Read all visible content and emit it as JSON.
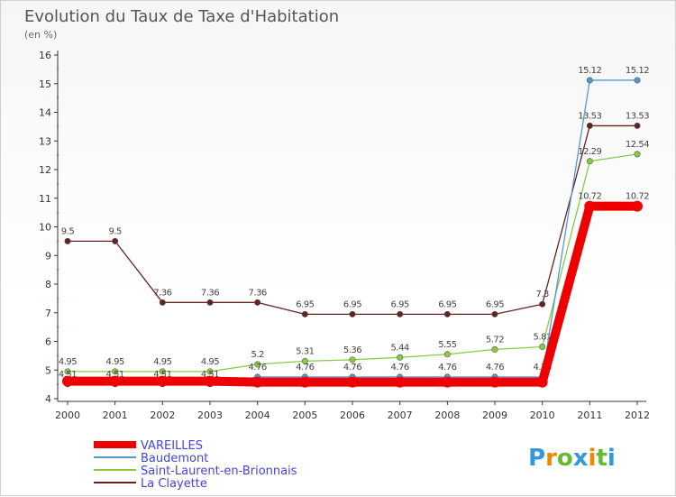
{
  "chart_data": {
    "type": "line",
    "title": "Evolution du Taux de Taxe d'Habitation",
    "subtitle": "(en %)",
    "categories": [
      "2000",
      "2001",
      "2002",
      "2003",
      "2004",
      "2005",
      "2006",
      "2007",
      "2008",
      "2009",
      "2010",
      "2011",
      "2012"
    ],
    "ylim": [
      4,
      16
    ],
    "yticks": [
      4,
      5,
      6,
      7,
      8,
      9,
      10,
      11,
      12,
      13,
      14,
      15,
      16
    ],
    "grid": false,
    "legend_position": "bottom-left",
    "series": [
      {
        "name": "VAREILLES",
        "color": "#ee0000",
        "values": [
          4.61,
          4.61,
          4.61,
          4.61,
          4.58,
          4.58,
          4.58,
          4.58,
          4.58,
          4.58,
          4.58,
          10.72,
          10.72
        ],
        "labels": [
          "",
          "",
          "",
          "",
          "",
          "",
          "",
          "",
          "",
          "",
          "",
          "10.72",
          "10.72"
        ]
      },
      {
        "name": "Baudemont",
        "color": "#5599cc",
        "values": [
          4.51,
          4.51,
          4.51,
          4.51,
          4.76,
          4.76,
          4.76,
          4.76,
          4.76,
          4.76,
          4.76,
          15.12,
          15.12
        ],
        "labels": [
          "4.51",
          "4.51",
          "4.51",
          "4.51",
          "4.76",
          "4.76",
          "4.76",
          "4.76",
          "4.76",
          "4.76",
          "4.76",
          "15.12",
          "15.12"
        ]
      },
      {
        "name": "Saint-Laurent-en-Brionnais",
        "color": "#88cc44",
        "values": [
          4.95,
          4.95,
          4.95,
          4.95,
          5.2,
          5.31,
          5.36,
          5.44,
          5.55,
          5.72,
          5.81,
          12.29,
          12.54
        ],
        "labels": [
          "4.95",
          "4.95",
          "4.95",
          "4.95",
          "5.2",
          "5.31",
          "5.36",
          "5.44",
          "5.55",
          "5.72",
          "5.81",
          "12.29",
          "12.54"
        ]
      },
      {
        "name": "La Clayette",
        "color": "#662222",
        "values": [
          9.5,
          9.5,
          7.36,
          7.36,
          7.36,
          6.95,
          6.95,
          6.95,
          6.95,
          6.95,
          7.3,
          13.53,
          13.53
        ],
        "labels": [
          "9.5",
          "9.5",
          "7.36",
          "7.36",
          "7.36",
          "6.95",
          "6.95",
          "6.95",
          "6.95",
          "6.95",
          "7.3",
          "13.53",
          "13.53"
        ]
      }
    ]
  },
  "brand": {
    "text": "Proxiti",
    "letters": [
      "P",
      "r",
      "o",
      "x",
      "i",
      "t",
      "i"
    ],
    "colors": [
      "#3399dd",
      "#ee8800",
      "#66bb33",
      "#3399dd",
      "#ee8800",
      "#66bb33",
      "#3399dd"
    ]
  }
}
